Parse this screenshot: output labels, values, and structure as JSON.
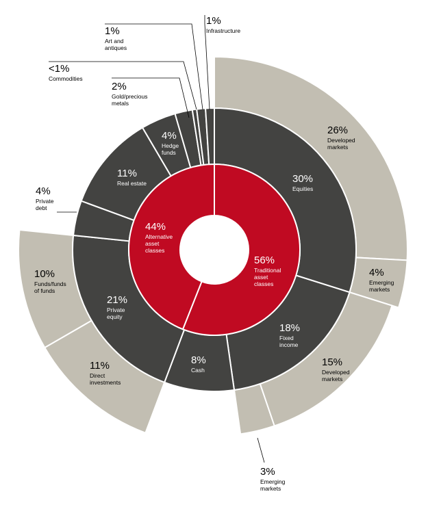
{
  "chart_data": {
    "type": "sunburst",
    "title": "",
    "colors": {
      "inner": "#c00a22",
      "middle": "#434341",
      "outer": "#c2beb2",
      "divider": "#ffffff",
      "text_light": "#ffffff",
      "text_dark": "#000000"
    },
    "inner": [
      {
        "id": "traditional",
        "value": 56,
        "label": "56%",
        "name": "Traditional asset classes",
        "name_lines": [
          "Traditional",
          "asset",
          "classes"
        ]
      },
      {
        "id": "alternative",
        "value": 44,
        "label": "44%",
        "name": "Alternative asset classes",
        "name_lines": [
          "Alternative",
          "asset",
          "classes"
        ]
      }
    ],
    "middle": [
      {
        "id": "equities",
        "parent": "traditional",
        "value": 30,
        "label": "30%",
        "name": "Equities",
        "name_lines": [
          "Equities"
        ]
      },
      {
        "id": "fixed-income",
        "parent": "traditional",
        "value": 18,
        "label": "18%",
        "name": "Fixed income",
        "name_lines": [
          "Fixed",
          "income"
        ]
      },
      {
        "id": "cash",
        "parent": "traditional",
        "value": 8,
        "label": "8%",
        "name": "Cash",
        "name_lines": [
          "Cash"
        ]
      },
      {
        "id": "private-equity",
        "parent": "alternative",
        "value": 21,
        "label": "21%",
        "name": "Private equity",
        "name_lines": [
          "Private",
          "equity"
        ]
      },
      {
        "id": "private-debt",
        "parent": "alternative",
        "value": 4,
        "label": "4%",
        "name": "Private debt",
        "name_lines": [
          "Private",
          "debt"
        ]
      },
      {
        "id": "real-estate",
        "parent": "alternative",
        "value": 11,
        "label": "11%",
        "name": "Real estate",
        "name_lines": [
          "Real estate"
        ]
      },
      {
        "id": "hedge-funds",
        "parent": "alternative",
        "value": 4,
        "label": "4%",
        "name": "Hedge funds",
        "name_lines": [
          "Hedge",
          "funds"
        ]
      },
      {
        "id": "gold-precious-metals",
        "parent": "alternative",
        "value": 2,
        "label": "2%",
        "name": "Gold/precious metals",
        "name_lines": [
          "Gold/precious",
          "metals"
        ]
      },
      {
        "id": "commodities",
        "parent": "alternative",
        "value": 0.5,
        "label": "<1%",
        "name": "Commodities",
        "name_lines": [
          "Commodities"
        ]
      },
      {
        "id": "art-and-antiques",
        "parent": "alternative",
        "value": 1,
        "label": "1%",
        "name": "Art and antiques",
        "name_lines": [
          "Art and",
          "antiques"
        ]
      },
      {
        "id": "infrastructure",
        "parent": "alternative",
        "value": 1,
        "label": "1%",
        "name": "Infrastructure",
        "name_lines": [
          "Infrastructure"
        ]
      }
    ],
    "outer": [
      {
        "id": "eq-developed",
        "parent": "equities",
        "value": 26,
        "label": "26%",
        "name": "Developed markets",
        "name_lines": [
          "Developed",
          "markets"
        ]
      },
      {
        "id": "eq-emerging",
        "parent": "equities",
        "value": 4,
        "label": "4%",
        "name": "Emerging markets",
        "name_lines": [
          "Emerging",
          "markets"
        ]
      },
      {
        "id": "fi-developed",
        "parent": "fixed-income",
        "value": 15,
        "label": "15%",
        "name": "Developed markets",
        "name_lines": [
          "Developed",
          "markets"
        ]
      },
      {
        "id": "fi-emerging",
        "parent": "fixed-income",
        "value": 3,
        "label": "3%",
        "name": "Emerging markets",
        "name_lines": [
          "Emerging",
          "markets"
        ]
      },
      {
        "id": "pe-direct",
        "parent": "private-equity",
        "value": 11,
        "label": "11%",
        "name": "Direct investments",
        "name_lines": [
          "Direct",
          "investments"
        ]
      },
      {
        "id": "pe-funds",
        "parent": "private-equity",
        "value": 10,
        "label": "10%",
        "name": "Funds/funds of funds",
        "name_lines": [
          "Funds/funds",
          "of funds"
        ]
      }
    ]
  }
}
